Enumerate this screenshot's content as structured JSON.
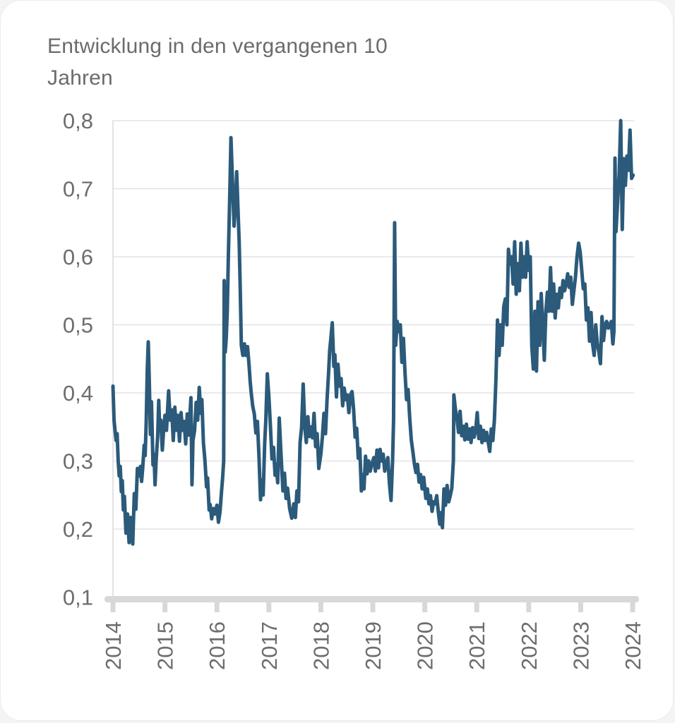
{
  "card": {
    "title_lines": [
      "Entwicklung in den vergangenen 10",
      "Jahren"
    ]
  },
  "chart_data": {
    "type": "line",
    "title": "Entwicklung in den vergangenen 10 Jahren",
    "xlabel": "",
    "ylabel": "",
    "grid": true,
    "legend": false,
    "decimal_separator": ",",
    "xlim": [
      2014,
      2024.05
    ],
    "ylim": [
      0.1,
      0.8
    ],
    "x_ticks": [
      2014,
      2015,
      2016,
      2017,
      2018,
      2019,
      2020,
      2021,
      2022,
      2023,
      2024
    ],
    "x_tick_labels": [
      "2014",
      "2015",
      "2016",
      "2017",
      "2018",
      "2019",
      "2020",
      "2021",
      "2022",
      "2023",
      "2024"
    ],
    "y_ticks": [
      0.1,
      0.2,
      0.3,
      0.4,
      0.5,
      0.6,
      0.7,
      0.8
    ],
    "y_tick_labels": [
      "0,1",
      "0,2",
      "0,3",
      "0,4",
      "0,5",
      "0,6",
      "0,7",
      "0,8"
    ],
    "colors": {
      "line": "#2b5a7a",
      "grid": "#e3e3e3",
      "axis": "#d8d8d8",
      "tick_label": "#6d6d6d",
      "title": "#6b6b6b"
    },
    "points": [
      [
        2014.0,
        0.41
      ],
      [
        2014.02,
        0.36
      ],
      [
        2014.04,
        0.345
      ],
      [
        2014.06,
        0.33
      ],
      [
        2014.08,
        0.34
      ],
      [
        2014.1,
        0.3
      ],
      [
        2014.12,
        0.278
      ],
      [
        2014.14,
        0.292
      ],
      [
        2014.16,
        0.255
      ],
      [
        2014.18,
        0.271
      ],
      [
        2014.2,
        0.228
      ],
      [
        2014.22,
        0.248
      ],
      [
        2014.25,
        0.194
      ],
      [
        2014.28,
        0.222
      ],
      [
        2014.31,
        0.18
      ],
      [
        2014.34,
        0.217
      ],
      [
        2014.38,
        0.178
      ],
      [
        2014.41,
        0.252
      ],
      [
        2014.44,
        0.229
      ],
      [
        2014.47,
        0.289
      ],
      [
        2014.5,
        0.278
      ],
      [
        2014.53,
        0.292
      ],
      [
        2014.55,
        0.27
      ],
      [
        2014.57,
        0.288
      ],
      [
        2014.6,
        0.323
      ],
      [
        2014.62,
        0.308
      ],
      [
        2014.64,
        0.358
      ],
      [
        2014.66,
        0.435
      ],
      [
        2014.68,
        0.475
      ],
      [
        2014.7,
        0.415
      ],
      [
        2014.72,
        0.339
      ],
      [
        2014.74,
        0.387
      ],
      [
        2014.77,
        0.294
      ],
      [
        2014.79,
        0.31
      ],
      [
        2014.81,
        0.265
      ],
      [
        2014.83,
        0.3
      ],
      [
        2014.86,
        0.336
      ],
      [
        2014.88,
        0.389
      ],
      [
        2014.9,
        0.347
      ],
      [
        2014.92,
        0.36
      ],
      [
        2014.95,
        0.316
      ],
      [
        2014.97,
        0.34
      ],
      [
        2015.0,
        0.367
      ],
      [
        2015.03,
        0.345
      ],
      [
        2015.07,
        0.403
      ],
      [
        2015.1,
        0.36
      ],
      [
        2015.13,
        0.375
      ],
      [
        2015.16,
        0.33
      ],
      [
        2015.19,
        0.379
      ],
      [
        2015.22,
        0.345
      ],
      [
        2015.25,
        0.367
      ],
      [
        2015.28,
        0.329
      ],
      [
        2015.31,
        0.371
      ],
      [
        2015.34,
        0.345
      ],
      [
        2015.37,
        0.358
      ],
      [
        2015.4,
        0.325
      ],
      [
        2015.43,
        0.369
      ],
      [
        2015.46,
        0.338
      ],
      [
        2015.5,
        0.393
      ],
      [
        2015.52,
        0.265
      ],
      [
        2015.54,
        0.33
      ],
      [
        2015.57,
        0.345
      ],
      [
        2015.6,
        0.386
      ],
      [
        2015.63,
        0.36
      ],
      [
        2015.66,
        0.408
      ],
      [
        2015.69,
        0.37
      ],
      [
        2015.71,
        0.39
      ],
      [
        2015.74,
        0.327
      ],
      [
        2015.77,
        0.3
      ],
      [
        2015.8,
        0.262
      ],
      [
        2015.82,
        0.275
      ],
      [
        2015.85,
        0.228
      ],
      [
        2015.87,
        0.236
      ],
      [
        2015.9,
        0.215
      ],
      [
        2015.93,
        0.23
      ],
      [
        2015.96,
        0.222
      ],
      [
        2016.0,
        0.235
      ],
      [
        2016.03,
        0.21
      ],
      [
        2016.06,
        0.225
      ],
      [
        2016.09,
        0.256
      ],
      [
        2016.11,
        0.275
      ],
      [
        2016.13,
        0.3
      ],
      [
        2016.14,
        0.565
      ],
      [
        2016.16,
        0.46
      ],
      [
        2016.18,
        0.48
      ],
      [
        2016.2,
        0.52
      ],
      [
        2016.22,
        0.6
      ],
      [
        2016.25,
        0.7
      ],
      [
        2016.27,
        0.775
      ],
      [
        2016.3,
        0.71
      ],
      [
        2016.33,
        0.645
      ],
      [
        2016.36,
        0.68
      ],
      [
        2016.38,
        0.725
      ],
      [
        2016.41,
        0.66
      ],
      [
        2016.43,
        0.62
      ],
      [
        2016.45,
        0.55
      ],
      [
        2016.47,
        0.47
      ],
      [
        2016.5,
        0.455
      ],
      [
        2016.53,
        0.472
      ],
      [
        2016.56,
        0.455
      ],
      [
        2016.59,
        0.468
      ],
      [
        2016.62,
        0.44
      ],
      [
        2016.64,
        0.417
      ],
      [
        2016.66,
        0.4
      ],
      [
        2016.69,
        0.38
      ],
      [
        2016.72,
        0.369
      ],
      [
        2016.75,
        0.341
      ],
      [
        2016.78,
        0.358
      ],
      [
        2016.81,
        0.306
      ],
      [
        2016.84,
        0.243
      ],
      [
        2016.86,
        0.272
      ],
      [
        2016.89,
        0.25
      ],
      [
        2016.92,
        0.327
      ],
      [
        2016.94,
        0.358
      ],
      [
        2016.97,
        0.428
      ],
      [
        2017.0,
        0.395
      ],
      [
        2017.03,
        0.351
      ],
      [
        2017.06,
        0.303
      ],
      [
        2017.09,
        0.32
      ],
      [
        2017.12,
        0.279
      ],
      [
        2017.14,
        0.295
      ],
      [
        2017.17,
        0.268
      ],
      [
        2017.2,
        0.363
      ],
      [
        2017.23,
        0.316
      ],
      [
        2017.27,
        0.256
      ],
      [
        2017.3,
        0.282
      ],
      [
        2017.33,
        0.245
      ],
      [
        2017.36,
        0.26
      ],
      [
        2017.4,
        0.23
      ],
      [
        2017.44,
        0.216
      ],
      [
        2017.48,
        0.237
      ],
      [
        2017.51,
        0.217
      ],
      [
        2017.54,
        0.256
      ],
      [
        2017.57,
        0.24
      ],
      [
        2017.6,
        0.327
      ],
      [
        2017.63,
        0.35
      ],
      [
        2017.66,
        0.413
      ],
      [
        2017.69,
        0.351
      ],
      [
        2017.72,
        0.327
      ],
      [
        2017.75,
        0.365
      ],
      [
        2017.78,
        0.336
      ],
      [
        2017.81,
        0.35
      ],
      [
        2017.84,
        0.334
      ],
      [
        2017.87,
        0.37
      ],
      [
        2017.9,
        0.321
      ],
      [
        2017.93,
        0.34
      ],
      [
        2017.96,
        0.289
      ],
      [
        2018.0,
        0.31
      ],
      [
        2018.03,
        0.335
      ],
      [
        2018.06,
        0.37
      ],
      [
        2018.09,
        0.34
      ],
      [
        2018.12,
        0.39
      ],
      [
        2018.15,
        0.43
      ],
      [
        2018.17,
        0.462
      ],
      [
        2018.19,
        0.478
      ],
      [
        2018.22,
        0.503
      ],
      [
        2018.25,
        0.439
      ],
      [
        2018.27,
        0.456
      ],
      [
        2018.3,
        0.394
      ],
      [
        2018.33,
        0.442
      ],
      [
        2018.36,
        0.41
      ],
      [
        2018.39,
        0.421
      ],
      [
        2018.42,
        0.381
      ],
      [
        2018.45,
        0.407
      ],
      [
        2018.48,
        0.39
      ],
      [
        2018.51,
        0.397
      ],
      [
        2018.54,
        0.371
      ],
      [
        2018.57,
        0.397
      ],
      [
        2018.6,
        0.402
      ],
      [
        2018.63,
        0.376
      ],
      [
        2018.66,
        0.335
      ],
      [
        2018.69,
        0.348
      ],
      [
        2018.72,
        0.304
      ],
      [
        2018.75,
        0.318
      ],
      [
        2018.78,
        0.256
      ],
      [
        2018.81,
        0.28
      ],
      [
        2018.83,
        0.259
      ],
      [
        2018.86,
        0.307
      ],
      [
        2018.89,
        0.281
      ],
      [
        2018.92,
        0.3
      ],
      [
        2018.95,
        0.285
      ],
      [
        2018.98,
        0.295
      ],
      [
        2019.02,
        0.305
      ],
      [
        2019.05,
        0.285
      ],
      [
        2019.08,
        0.316
      ],
      [
        2019.11,
        0.29
      ],
      [
        2019.14,
        0.317
      ],
      [
        2019.17,
        0.3
      ],
      [
        2019.2,
        0.31
      ],
      [
        2019.23,
        0.285
      ],
      [
        2019.26,
        0.295
      ],
      [
        2019.29,
        0.305
      ],
      [
        2019.32,
        0.266
      ],
      [
        2019.35,
        0.242
      ],
      [
        2019.38,
        0.3
      ],
      [
        2019.4,
        0.36
      ],
      [
        2019.42,
        0.65
      ],
      [
        2019.44,
        0.47
      ],
      [
        2019.47,
        0.505
      ],
      [
        2019.5,
        0.49
      ],
      [
        2019.53,
        0.5
      ],
      [
        2019.56,
        0.445
      ],
      [
        2019.59,
        0.48
      ],
      [
        2019.62,
        0.43
      ],
      [
        2019.65,
        0.39
      ],
      [
        2019.68,
        0.405
      ],
      [
        2019.71,
        0.363
      ],
      [
        2019.74,
        0.331
      ],
      [
        2019.77,
        0.314
      ],
      [
        2019.8,
        0.296
      ],
      [
        2019.83,
        0.283
      ],
      [
        2019.86,
        0.295
      ],
      [
        2019.89,
        0.269
      ],
      [
        2019.92,
        0.28
      ],
      [
        2019.95,
        0.259
      ],
      [
        2019.98,
        0.276
      ],
      [
        2020.02,
        0.245
      ],
      [
        2020.05,
        0.259
      ],
      [
        2020.08,
        0.237
      ],
      [
        2020.11,
        0.249
      ],
      [
        2020.14,
        0.226
      ],
      [
        2020.17,
        0.24
      ],
      [
        2020.2,
        0.237
      ],
      [
        2020.23,
        0.249
      ],
      [
        2020.26,
        0.226
      ],
      [
        2020.29,
        0.207
      ],
      [
        2020.31,
        0.224
      ],
      [
        2020.34,
        0.202
      ],
      [
        2020.37,
        0.259
      ],
      [
        2020.4,
        0.235
      ],
      [
        2020.43,
        0.264
      ],
      [
        2020.46,
        0.24
      ],
      [
        2020.49,
        0.249
      ],
      [
        2020.52,
        0.26
      ],
      [
        2020.55,
        0.3
      ],
      [
        2020.56,
        0.397
      ],
      [
        2020.59,
        0.376
      ],
      [
        2020.62,
        0.363
      ],
      [
        2020.65,
        0.342
      ],
      [
        2020.68,
        0.373
      ],
      [
        2020.71,
        0.337
      ],
      [
        2020.74,
        0.351
      ],
      [
        2020.77,
        0.331
      ],
      [
        2020.8,
        0.354
      ],
      [
        2020.83,
        0.332
      ],
      [
        2020.86,
        0.347
      ],
      [
        2020.89,
        0.327
      ],
      [
        2020.92,
        0.349
      ],
      [
        2020.95,
        0.335
      ],
      [
        2020.98,
        0.345
      ],
      [
        2021.01,
        0.371
      ],
      [
        2021.04,
        0.333
      ],
      [
        2021.07,
        0.351
      ],
      [
        2021.1,
        0.327
      ],
      [
        2021.13,
        0.345
      ],
      [
        2021.16,
        0.33
      ],
      [
        2021.19,
        0.342
      ],
      [
        2021.22,
        0.328
      ],
      [
        2021.25,
        0.314
      ],
      [
        2021.28,
        0.347
      ],
      [
        2021.31,
        0.33
      ],
      [
        2021.34,
        0.36
      ],
      [
        2021.37,
        0.42
      ],
      [
        2021.4,
        0.507
      ],
      [
        2021.43,
        0.455
      ],
      [
        2021.46,
        0.5
      ],
      [
        2021.49,
        0.47
      ],
      [
        2021.52,
        0.527
      ],
      [
        2021.55,
        0.538
      ],
      [
        2021.58,
        0.5
      ],
      [
        2021.61,
        0.611
      ],
      [
        2021.64,
        0.589
      ],
      [
        2021.67,
        0.6
      ],
      [
        2021.7,
        0.56
      ],
      [
        2021.73,
        0.622
      ],
      [
        2021.76,
        0.545
      ],
      [
        2021.79,
        0.59
      ],
      [
        2021.82,
        0.55
      ],
      [
        2021.85,
        0.62
      ],
      [
        2021.88,
        0.57
      ],
      [
        2021.91,
        0.6
      ],
      [
        2021.94,
        0.57
      ],
      [
        2021.97,
        0.622
      ],
      [
        2022.0,
        0.58
      ],
      [
        2022.03,
        0.6
      ],
      [
        2022.06,
        0.468
      ],
      [
        2022.09,
        0.435
      ],
      [
        2022.12,
        0.52
      ],
      [
        2022.15,
        0.432
      ],
      [
        2022.18,
        0.534
      ],
      [
        2022.21,
        0.47
      ],
      [
        2022.24,
        0.546
      ],
      [
        2022.27,
        0.5
      ],
      [
        2022.3,
        0.448
      ],
      [
        2022.33,
        0.52
      ],
      [
        2022.36,
        0.548
      ],
      [
        2022.39,
        0.52
      ],
      [
        2022.42,
        0.584
      ],
      [
        2022.45,
        0.52
      ],
      [
        2022.48,
        0.56
      ],
      [
        2022.51,
        0.51
      ],
      [
        2022.54,
        0.545
      ],
      [
        2022.57,
        0.525
      ],
      [
        2022.6,
        0.554
      ],
      [
        2022.63,
        0.54
      ],
      [
        2022.66,
        0.565
      ],
      [
        2022.69,
        0.55
      ],
      [
        2022.72,
        0.56
      ],
      [
        2022.75,
        0.575
      ],
      [
        2022.78,
        0.555
      ],
      [
        2022.81,
        0.57
      ],
      [
        2022.84,
        0.53
      ],
      [
        2022.87,
        0.55
      ],
      [
        2022.9,
        0.57
      ],
      [
        2022.93,
        0.6
      ],
      [
        2022.96,
        0.62
      ],
      [
        2022.99,
        0.607
      ],
      [
        2023.02,
        0.58
      ],
      [
        2023.05,
        0.553
      ],
      [
        2023.08,
        0.56
      ],
      [
        2023.11,
        0.507
      ],
      [
        2023.14,
        0.525
      ],
      [
        2023.17,
        0.476
      ],
      [
        2023.2,
        0.518
      ],
      [
        2023.23,
        0.472
      ],
      [
        2023.26,
        0.455
      ],
      [
        2023.29,
        0.5
      ],
      [
        2023.32,
        0.472
      ],
      [
        2023.35,
        0.46
      ],
      [
        2023.38,
        0.443
      ],
      [
        2023.41,
        0.512
      ],
      [
        2023.44,
        0.477
      ],
      [
        2023.47,
        0.5
      ],
      [
        2023.5,
        0.505
      ],
      [
        2023.53,
        0.495
      ],
      [
        2023.56,
        0.5
      ],
      [
        2023.59,
        0.505
      ],
      [
        2023.62,
        0.472
      ],
      [
        2023.64,
        0.49
      ],
      [
        2023.66,
        0.745
      ],
      [
        2023.68,
        0.637
      ],
      [
        2023.71,
        0.68
      ],
      [
        2023.74,
        0.72
      ],
      [
        2023.77,
        0.8
      ],
      [
        2023.8,
        0.64
      ],
      [
        2023.83,
        0.744
      ],
      [
        2023.86,
        0.705
      ],
      [
        2023.89,
        0.748
      ],
      [
        2023.92,
        0.727
      ],
      [
        2023.95,
        0.786
      ],
      [
        2023.98,
        0.715
      ],
      [
        2024.01,
        0.72
      ]
    ]
  }
}
